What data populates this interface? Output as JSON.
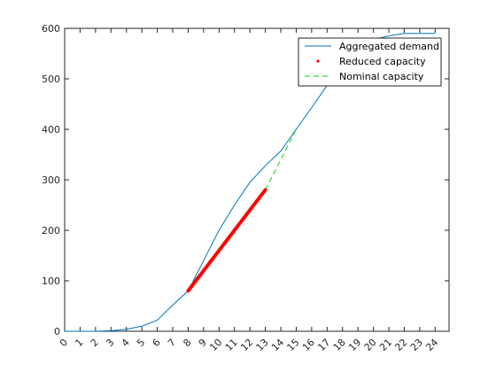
{
  "chart_data": {
    "type": "line",
    "title": "",
    "xlabel": "",
    "ylabel": "",
    "xlim": [
      0,
      24.9
    ],
    "ylim": [
      0,
      600
    ],
    "x_ticks": [
      0,
      1,
      2,
      3,
      4,
      5,
      6,
      7,
      8,
      9,
      10,
      11,
      12,
      13,
      14,
      15,
      16,
      17,
      18,
      19,
      20,
      21,
      22,
      23,
      24
    ],
    "y_ticks": [
      0,
      100,
      200,
      300,
      400,
      500,
      600
    ],
    "grid": false,
    "legend_position": "top-right",
    "series": [
      {
        "name": "Aggregated demand",
        "style": "solid",
        "color": "#0072bd",
        "x": [
          0,
          1,
          2,
          3,
          4,
          5,
          6,
          7,
          8,
          9,
          10,
          11,
          12,
          13,
          14,
          15,
          16,
          17,
          18,
          19,
          20,
          21,
          22,
          23,
          24
        ],
        "y": [
          0,
          0,
          0,
          1,
          4,
          10,
          22,
          52,
          80,
          140,
          200,
          250,
          295,
          328,
          357,
          400,
          443,
          487,
          530,
          558,
          578,
          585,
          590,
          590,
          590
        ]
      },
      {
        "name": "Reduced capacity",
        "style": "dotted-thick",
        "color": "#ff0000",
        "x": [
          8,
          9,
          10,
          11,
          12,
          13
        ],
        "y": [
          80,
          120,
          160,
          200,
          240,
          280
        ]
      },
      {
        "name": "Nominal capacity",
        "style": "dashed",
        "color": "#00dd00",
        "x": [
          13,
          14,
          15
        ],
        "y": [
          280,
          340,
          400
        ]
      }
    ]
  }
}
